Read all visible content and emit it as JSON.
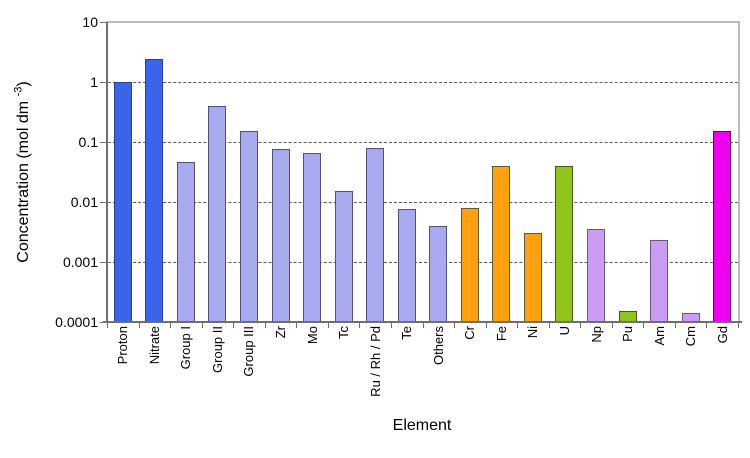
{
  "figure": {
    "background": "#FFFFFF",
    "frame_color": "#BDBDBD",
    "axis_color": "#6F6F6F",
    "gridline_color": "#5A5A5A",
    "text_color": "#000000"
  },
  "chart_data": {
    "type": "bar",
    "title": "",
    "xlabel": "Element",
    "ylabel": "Concentration (mol dm -3)",
    "ylabel_parts": {
      "prefix": "Concentration (mol dm ",
      "sup": "-3",
      "suffix": ")"
    },
    "y_scale": "log",
    "ylim": [
      0.0001,
      10
    ],
    "grid": {
      "horizontal": true,
      "style": "dashed",
      "at_each_decade": true
    },
    "legend": "none",
    "y_ticks": [
      {
        "value": 10,
        "label": "10"
      },
      {
        "value": 1,
        "label": "1"
      },
      {
        "value": 0.1,
        "label": "0.1"
      },
      {
        "value": 0.01,
        "label": "0.01"
      },
      {
        "value": 0.001,
        "label": "0.001"
      },
      {
        "value": 0.0001,
        "label": "0.0001"
      }
    ],
    "bars": [
      {
        "category": "Proton",
        "value": 1.0,
        "fill": "#3A65E9",
        "border": "#2A3F9E"
      },
      {
        "category": "Nitrate",
        "value": 2.4,
        "fill": "#3A65E9",
        "border": "#2A3F9E"
      },
      {
        "category": "Group I",
        "value": 0.046,
        "fill": "#A9A9F0",
        "border": "#50507A"
      },
      {
        "category": "Group II",
        "value": 0.4,
        "fill": "#A9A9F0",
        "border": "#50507A"
      },
      {
        "category": "Group III",
        "value": 0.15,
        "fill": "#A9A9F0",
        "border": "#50507A"
      },
      {
        "category": "Zr",
        "value": 0.075,
        "fill": "#A9A9F0",
        "border": "#50507A"
      },
      {
        "category": "Mo",
        "value": 0.066,
        "fill": "#A9A9F0",
        "border": "#50507A"
      },
      {
        "category": "Tc",
        "value": 0.015,
        "fill": "#A9A9F0",
        "border": "#50507A"
      },
      {
        "category": "Ru / Rh / Pd",
        "value": 0.078,
        "fill": "#A9A9F0",
        "border": "#50507A"
      },
      {
        "category": "Te",
        "value": 0.0075,
        "fill": "#A9A9F0",
        "border": "#50507A"
      },
      {
        "category": "Others",
        "value": 0.004,
        "fill": "#A9A9F0",
        "border": "#50507A"
      },
      {
        "category": "Cr",
        "value": 0.008,
        "fill": "#FFA013",
        "border": "#5C5C34"
      },
      {
        "category": "Fe",
        "value": 0.04,
        "fill": "#FFA013",
        "border": "#5C5C34"
      },
      {
        "category": "Ni",
        "value": 0.003,
        "fill": "#FFA013",
        "border": "#5C5C34"
      },
      {
        "category": "U",
        "value": 0.04,
        "fill": "#90C41C",
        "border": "#46551A"
      },
      {
        "category": "Np",
        "value": 0.0036,
        "fill": "#CB9DF0",
        "border": "#6A5A80"
      },
      {
        "category": "Pu",
        "value": 0.00015,
        "fill": "#90C41C",
        "border": "#46551A"
      },
      {
        "category": "Am",
        "value": 0.0023,
        "fill": "#CB9DF0",
        "border": "#6A5A80"
      },
      {
        "category": "Cm",
        "value": 0.00014,
        "fill": "#CB9DF0",
        "border": "#6A5A80"
      },
      {
        "category": "Gd",
        "value": 0.15,
        "fill": "#EE00EE",
        "border": "#70006E"
      }
    ]
  }
}
